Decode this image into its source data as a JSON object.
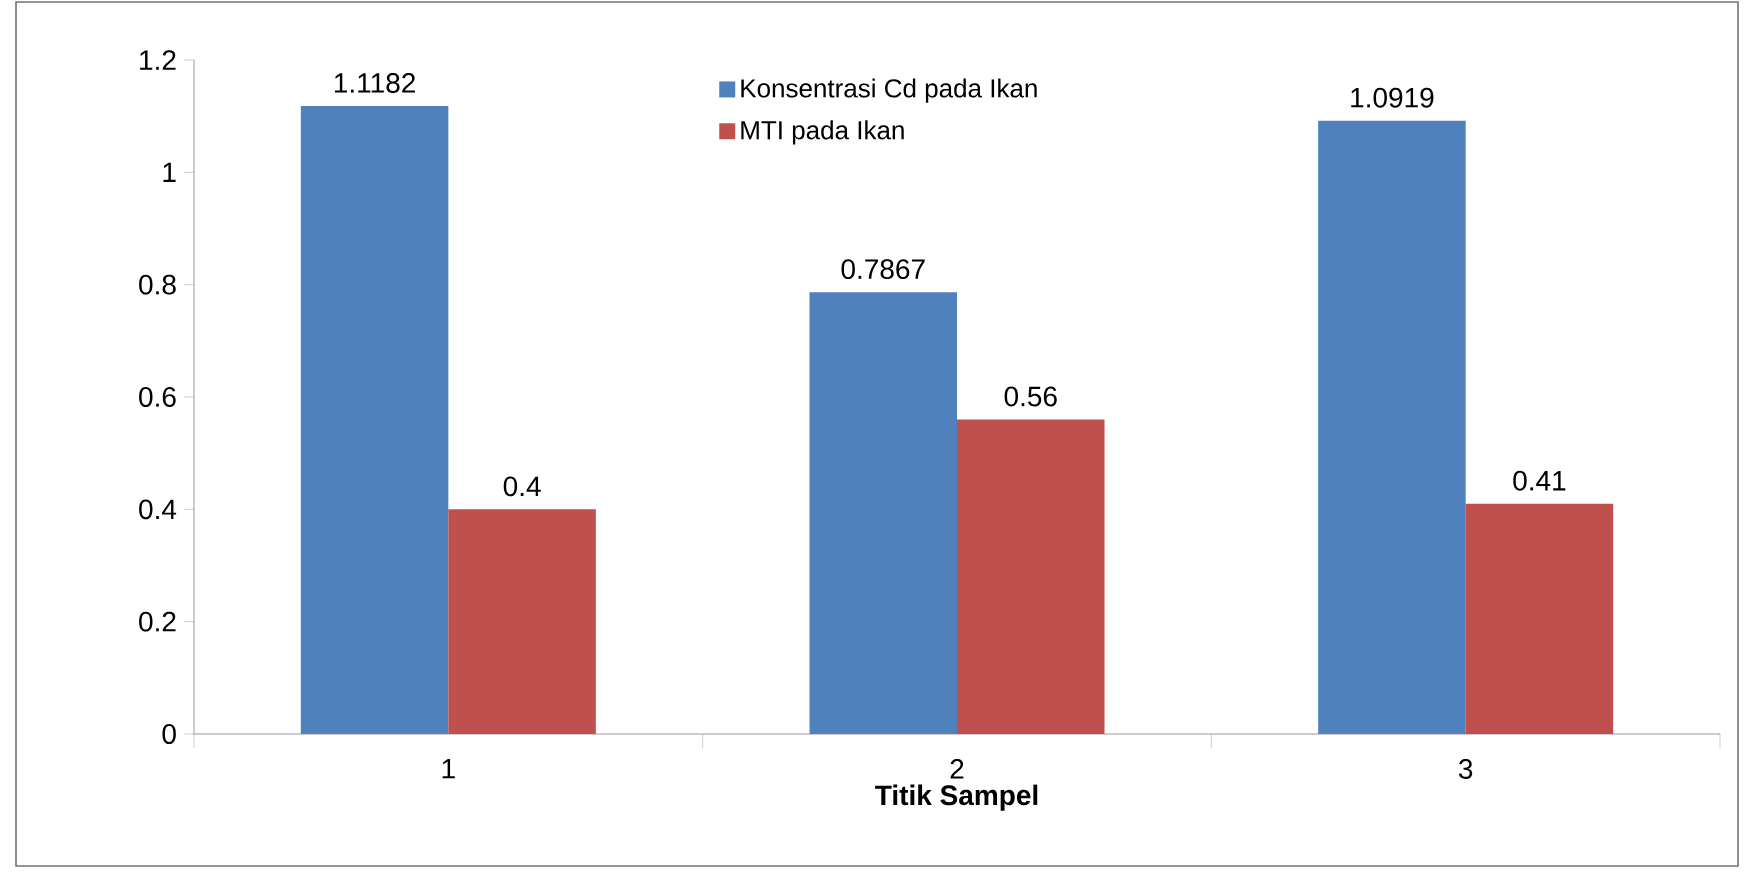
{
  "chart_data": {
    "type": "bar",
    "xlabel": "Titik Sampel",
    "categories": [
      "1",
      "2",
      "3"
    ],
    "series": [
      {
        "name": "Konsentrasi Cd pada Ikan",
        "color": "#4f81bd",
        "values": [
          1.1182,
          0.7867,
          1.0919
        ]
      },
      {
        "name": "MTI pada Ikan",
        "color": "#c0504d",
        "values": [
          0.4,
          0.56,
          0.41
        ]
      }
    ],
    "ylim": [
      0,
      1.2
    ],
    "yticks": [
      0,
      0.2,
      0.4,
      0.6,
      0.8,
      1,
      1.2
    ],
    "data_labels": true,
    "legend": "top",
    "grid": false
  }
}
